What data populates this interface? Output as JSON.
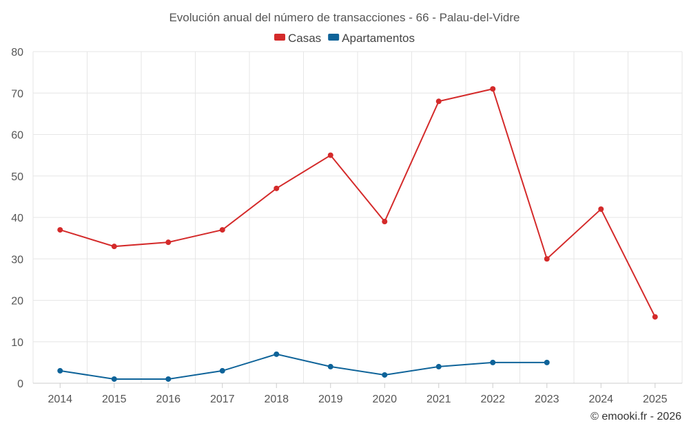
{
  "chart_data": {
    "type": "line",
    "title": "Evolución anual del número de transacciones - 66 - Palau-del-Vidre",
    "x": [
      "2014",
      "2015",
      "2016",
      "2017",
      "2018",
      "2019",
      "2020",
      "2021",
      "2022",
      "2023",
      "2024",
      "2025"
    ],
    "ylim": [
      0,
      80
    ],
    "yticks": [
      0,
      10,
      20,
      30,
      40,
      50,
      60,
      70,
      80
    ],
    "grid": true,
    "legend_position": "top-center",
    "series": [
      {
        "name": "Casas",
        "color": "#d42a2a",
        "values": [
          37,
          33,
          34,
          37,
          47,
          55,
          39,
          68,
          71,
          30,
          42,
          16
        ]
      },
      {
        "name": "Apartamentos",
        "color": "#0e6399",
        "values": [
          3,
          1,
          1,
          3,
          7,
          4,
          2,
          4,
          5,
          5,
          null,
          null
        ]
      }
    ]
  },
  "credit": "© emooki.fr - 2026"
}
